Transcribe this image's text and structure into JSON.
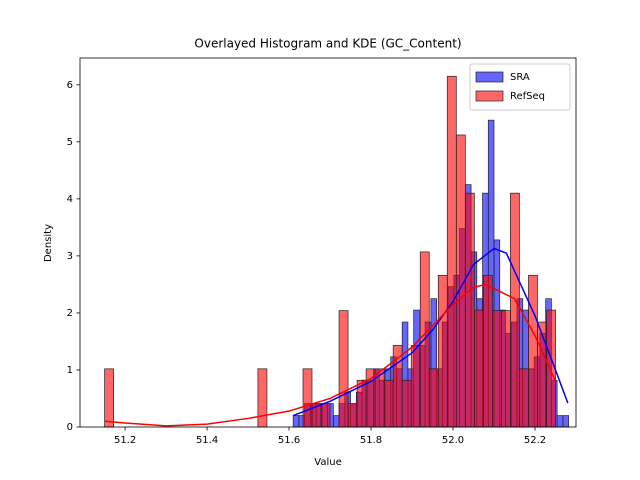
{
  "chart_data": {
    "type": "histogram",
    "title": "Overlayed Histogram and KDE (GC_Content)",
    "xlabel": "Value",
    "ylabel": "Density",
    "xlim": [
      51.09,
      52.3
    ],
    "ylim": [
      0,
      6.47
    ],
    "xticks": [
      51.2,
      51.4,
      51.6,
      51.8,
      {
        "value": 52,
        "label": "52.0"
      },
      52.2
    ],
    "yticks": [
      0,
      1,
      2,
      3,
      4,
      5,
      6
    ],
    "legend": "upper right",
    "series": [
      {
        "name": "SRA",
        "color": "#0000ff",
        "bins": [
          51.61,
          51.624,
          51.638,
          51.652,
          51.666,
          51.68,
          51.694,
          51.708,
          51.722,
          51.736,
          51.75,
          51.764,
          51.778,
          51.792,
          51.806,
          51.82,
          51.834,
          51.848,
          51.862,
          51.876,
          51.89,
          51.904,
          51.918,
          51.932,
          51.946,
          51.96,
          51.974,
          51.988,
          52.002,
          52.016,
          52.03,
          52.044,
          52.058,
          52.072,
          52.086,
          52.1,
          52.114,
          52.128,
          52.142,
          52.156,
          52.17,
          52.184,
          52.198,
          52.212,
          52.226,
          52.24,
          52.254,
          52.268,
          52.282
        ],
        "values": [
          0.2,
          0.2,
          0.41,
          0.41,
          0.41,
          0.41,
          0.41,
          0.2,
          0.41,
          0.61,
          0.41,
          0.61,
          0.82,
          0.82,
          1.02,
          0.82,
          1.02,
          1.23,
          1.02,
          1.84,
          1.02,
          2.05,
          1.43,
          1.84,
          2.25,
          1.02,
          1.84,
          2.46,
          2.66,
          3.48,
          4.25,
          3.07,
          2.25,
          4.1,
          5.38,
          3.28,
          2.05,
          1.64,
          1.84,
          2.25,
          2.05,
          1.02,
          1.23,
          1.64,
          2.25,
          0.82,
          0.2,
          0.2
        ],
        "kde_x": [
          51.61,
          51.7,
          51.8,
          51.9,
          51.95,
          52.0,
          52.05,
          52.1,
          52.13,
          52.2,
          52.25,
          52.28
        ],
        "kde_y": [
          0.2,
          0.45,
          0.8,
          1.3,
          1.7,
          2.2,
          2.85,
          3.13,
          3.05,
          1.95,
          1.0,
          0.42
        ]
      },
      {
        "name": "RefSeq",
        "color": "#ff0000",
        "bins": [
          51.15,
          51.172,
          51.194,
          51.216,
          51.238,
          51.26,
          51.282,
          51.304,
          51.326,
          51.348,
          51.37,
          51.392,
          51.414,
          51.436,
          51.458,
          51.48,
          51.502,
          51.524,
          51.546,
          51.568,
          51.59,
          51.612,
          51.634,
          51.656,
          51.678,
          51.7,
          51.722,
          51.744,
          51.766,
          51.788,
          51.81,
          51.832,
          51.854,
          51.876,
          51.898,
          51.92,
          51.942,
          51.964,
          51.986,
          52.008,
          52.03,
          52.052,
          52.074,
          52.096,
          52.118,
          52.14,
          52.162,
          52.184,
          52.206,
          52.228,
          52.25
        ],
        "values": [
          1.02,
          0,
          0,
          0,
          0,
          0,
          0,
          0,
          0,
          0,
          0,
          0,
          0,
          0,
          0,
          0,
          0,
          1.02,
          0,
          0,
          0,
          0,
          1.02,
          0.41,
          0.41,
          0,
          2.04,
          0.41,
          0.82,
          1.02,
          1.02,
          0.82,
          1.43,
          0.82,
          1.43,
          3.07,
          1.02,
          2.66,
          6.15,
          5.12,
          4.1,
          2.05,
          2.66,
          2.04,
          2.04,
          4.1,
          1.02,
          2.66,
          1.84,
          2.05
        ],
        "kde_x": [
          51.15,
          51.2,
          51.3,
          51.4,
          51.5,
          51.6,
          51.7,
          51.8,
          51.9,
          52.0,
          52.05,
          52.08,
          52.15,
          52.2,
          52.25
        ],
        "kde_y": [
          0.1,
          0.07,
          0.02,
          0.05,
          0.15,
          0.28,
          0.5,
          0.85,
          1.4,
          2.15,
          2.45,
          2.5,
          2.25,
          1.6,
          0.8
        ]
      }
    ]
  }
}
